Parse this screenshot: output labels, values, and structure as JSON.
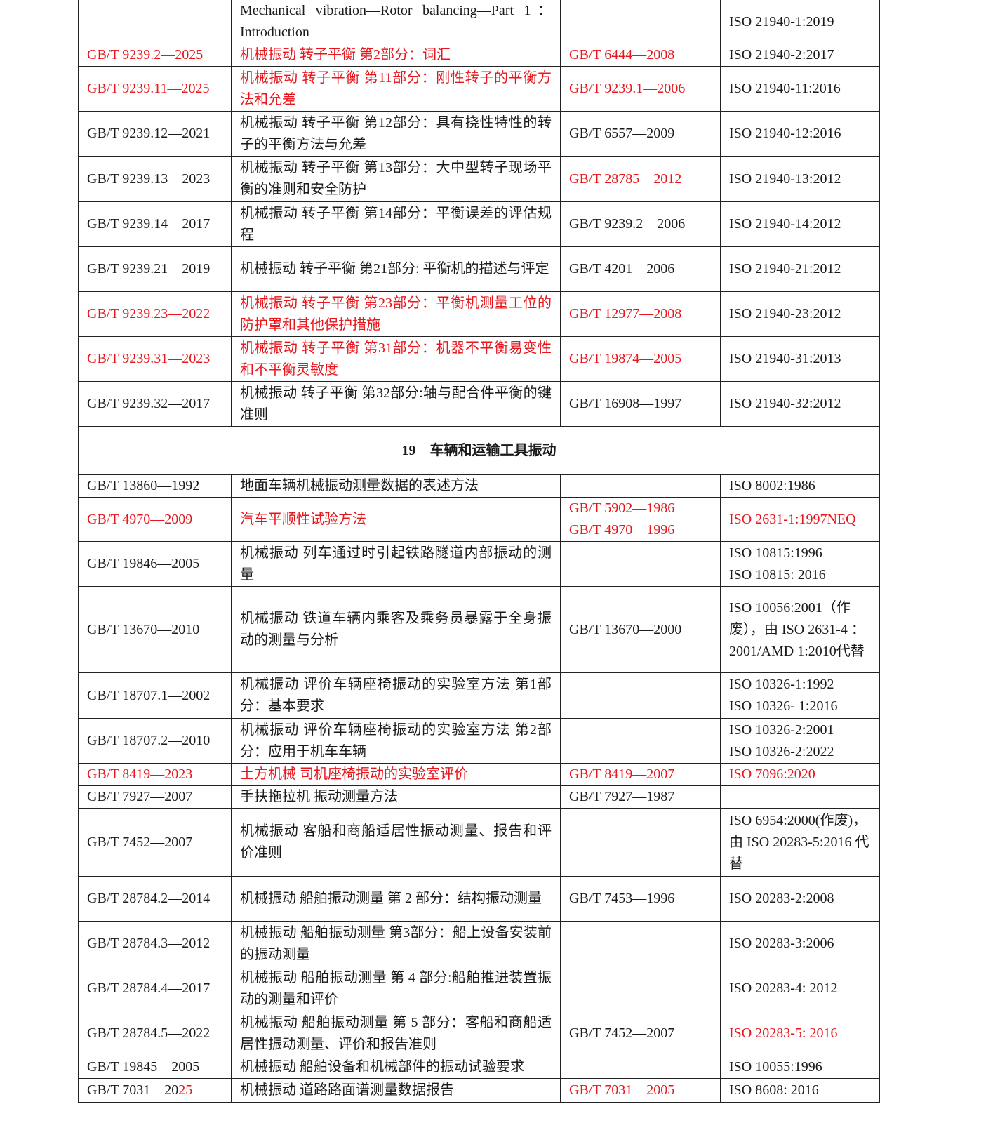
{
  "section": {
    "number": "19",
    "title": "车辆和运输工具振动"
  },
  "rows_before": [
    {
      "code": [
        {
          "t": ""
        }
      ],
      "title": [
        {
          "t": "Mechanical vibration—Rotor balancing—Part 1：Introduction"
        }
      ],
      "replaces": [],
      "iso": [
        {
          "t": "ISO 21940-1:2019"
        }
      ]
    },
    {
      "code": [
        {
          "t": "GB/T 9239.2—2025",
          "red": true
        }
      ],
      "title": [
        {
          "t": "机械振动  转子平衡  第2部分：词汇",
          "red": true
        }
      ],
      "replaces": [
        {
          "t": "GB/T 6444—2008",
          "red": true
        }
      ],
      "iso": [
        {
          "t": "ISO 21940-2:2017"
        }
      ]
    },
    {
      "code": [
        {
          "t": "GB/T 9239.11—2025",
          "red": true
        }
      ],
      "title": [
        {
          "t": "机械振动  转子平衡  第11部分：刚性转子的平衡方法和允差",
          "red": true
        }
      ],
      "replaces": [
        {
          "t": "GB/T 9239.1—2006",
          "red": true
        }
      ],
      "iso": [
        {
          "t": "ISO 21940-11:2016"
        }
      ]
    },
    {
      "code": [
        {
          "t": "GB/T 9239.12—2021"
        }
      ],
      "title": [
        {
          "t": "机械振动  转子平衡  第12部分：具有挠性特性的转子的平衡方法与允差"
        }
      ],
      "replaces": [
        {
          "t": "GB/T 6557—2009"
        }
      ],
      "iso": [
        {
          "t": "ISO 21940-12:2016"
        }
      ]
    },
    {
      "code": [
        {
          "t": "GB/T 9239.13—2023"
        }
      ],
      "title": [
        {
          "t": "机械振动  转子平衡  第13部分：大中型转子现场平衡的准则和安全防护"
        }
      ],
      "replaces": [
        {
          "t": "GB/T 28785—2012",
          "red": true
        }
      ],
      "iso": [
        {
          "t": "ISO 21940-13:2012"
        }
      ]
    },
    {
      "code": [
        {
          "t": "GB/T 9239.14—2017"
        }
      ],
      "title": [
        {
          "t": "机械振动  转子平衡  第14部分：平衡误差的评估规程"
        }
      ],
      "replaces": [
        {
          "t": "GB/T 9239.2—2006"
        }
      ],
      "iso": [
        {
          "t": "ISO 21940-14:2012"
        }
      ]
    },
    {
      "code": [
        {
          "t": "GB/T 9239.21—2019"
        }
      ],
      "title": [
        {
          "t": "机械振动  转子平衡  第21部分: 平衡机的描述与评定"
        }
      ],
      "replaces": [
        {
          "t": "GB/T 4201—2006"
        }
      ],
      "iso": [
        {
          "t": "ISO 21940-21:2012"
        }
      ]
    },
    {
      "code": [
        {
          "t": "GB/T 9239.23—2022",
          "red": true
        }
      ],
      "title": [
        {
          "t": "机械振动  转子平衡  第23部分：平衡机测量工位的防护罩和其他保护措施",
          "red": true
        }
      ],
      "replaces": [
        {
          "t": "GB/T 12977—2008",
          "red": true
        }
      ],
      "iso": [
        {
          "t": "ISO 21940-23:2012"
        }
      ]
    },
    {
      "code": [
        {
          "t": "GB/T 9239.31—2023",
          "red": true
        }
      ],
      "title": [
        {
          "t": "机械振动  转子平衡  第31部分：机器不平衡易变性和不平衡灵敏度",
          "red": true
        }
      ],
      "replaces": [
        {
          "t": "GB/T 19874—2005",
          "red": true
        }
      ],
      "iso": [
        {
          "t": "ISO 21940-31:2013"
        }
      ]
    },
    {
      "code": [
        {
          "t": "GB/T 9239.32—2017"
        }
      ],
      "title": [
        {
          "t": "机械振动  转子平衡  第32部分:轴与配合件平衡的键准则"
        }
      ],
      "replaces": [
        {
          "t": " GB/T 16908—1997"
        }
      ],
      "iso": [
        {
          "t": "ISO 21940-32:2012"
        }
      ]
    }
  ],
  "rows_after": [
    {
      "code": [
        {
          "t": "GB/T 13860—1992"
        }
      ],
      "title": [
        {
          "t": "地面车辆机械振动测量数据的表述方法"
        }
      ],
      "replaces": [],
      "iso": [
        {
          "t": "ISO 8002:1986"
        }
      ]
    },
    {
      "code": [
        {
          "t": "GB/T 4970—2009",
          "red": true
        }
      ],
      "title": [
        {
          "t": "汽车平顺性试验方法",
          "red": true
        }
      ],
      "replaces": [
        {
          "t": "GB/T 5902—1986",
          "red": true,
          "br": true
        },
        {
          "t": "GB/T 4970—1996",
          "red": true
        }
      ],
      "iso": [
        {
          "t": "ISO 2631-1:1997NEQ",
          "red": true
        }
      ]
    },
    {
      "code": [
        {
          "t": "GB/T 19846—2005"
        }
      ],
      "title": [
        {
          "t": "机械振动  列车通过时引起铁路隧道内部振动的测量"
        }
      ],
      "replaces": [],
      "iso": [
        {
          "t": "ISO 10815:1996",
          "br": true
        },
        {
          "t": "ISO 10815: 2016"
        }
      ]
    },
    {
      "code": [
        {
          "t": "GB/T 13670—2010"
        }
      ],
      "title": [
        {
          "t": "机械振动  铁道车辆内乘客及乘务员暴露于全身振动的测量与分析"
        }
      ],
      "replaces": [
        {
          "t": "GB/T 13670—2000"
        }
      ],
      "iso": [
        {
          "t": "ISO 10056:2001（作废），由 ISO 2631-4 ： 2001/AMD 1:2010代替"
        }
      ]
    },
    {
      "code": [
        {
          "t": "GB/T 18707.1—2002"
        }
      ],
      "title": [
        {
          "t": "机械振动  评价车辆座椅振动的实验室方法  第1部分：基本要求"
        }
      ],
      "replaces": [],
      "iso": [
        {
          "t": "ISO 10326-1:1992",
          "br": true
        },
        {
          "t": "ISO 10326- 1:2016"
        }
      ]
    },
    {
      "code": [
        {
          "t": "GB/T 18707.2—2010"
        }
      ],
      "title": [
        {
          "t": "机械振动  评价车辆座椅振动的实验室方法  第2部分：应用于机车车辆"
        }
      ],
      "replaces": [],
      "iso": [
        {
          "t": "ISO 10326-2:2001",
          "br": true
        },
        {
          "t": "ISO 10326-2:2022"
        }
      ]
    },
    {
      "code": [
        {
          "t": "GB/T 8419—2023",
          "red": true
        }
      ],
      "title": [
        {
          "t": "土方机械  司机座椅振动的实验室评价",
          "red": true
        }
      ],
      "replaces": [
        {
          "t": "GB/T 8419—2007",
          "red": true
        }
      ],
      "iso": [
        {
          "t": "ISO 7096:2020",
          "red": true
        }
      ]
    },
    {
      "code": [
        {
          "t": "GB/T 7927—2007"
        }
      ],
      "title": [
        {
          "t": "手扶拖拉机    振动测量方法"
        }
      ],
      "replaces": [
        {
          "t": "GB/T 7927—1987"
        }
      ],
      "iso": []
    },
    {
      "code": [
        {
          "t": "GB/T 7452—2007"
        }
      ],
      "title": [
        {
          "t": "机械振动  客船和商船适居性振动测量、报告和评价准则"
        }
      ],
      "replaces": [],
      "iso": [
        {
          "t": "ISO 6954:2000(作废)，由 ISO 20283-5:2016 代替"
        }
      ]
    },
    {
      "code": [
        {
          "t": "GB/T 28784.2—2014"
        }
      ],
      "title": [
        {
          "t": "机械振动  船舶振动测量  第 2 部分：结构振动测量"
        }
      ],
      "replaces": [
        {
          "t": "GB/T 7453—1996"
        }
      ],
      "iso": [
        {
          "t": "ISO 20283-2:2008"
        }
      ]
    },
    {
      "code": [
        {
          "t": "GB/T 28784.3—2012"
        }
      ],
      "title": [
        {
          "t": "机械振动  船舶振动测量  第3部分：船上设备安装前的振动测量"
        }
      ],
      "replaces": [],
      "iso": [
        {
          "t": "ISO 20283-3:2006"
        }
      ]
    },
    {
      "code": [
        {
          "t": "GB/T 28784.4—2017"
        }
      ],
      "title": [
        {
          "t": "机械振动  船舶振动测量  第 4 部分:船舶推进装置振动的测量和评价"
        }
      ],
      "replaces": [],
      "iso": [
        {
          "t": "ISO 20283-4: 2012"
        }
      ]
    },
    {
      "code": [
        {
          "t": "GB/T 28784.5—2022"
        }
      ],
      "title": [
        {
          "t": "机械振动  船舶振动测量  第 5 部分：客船和商船适居性振动测量、评价和报告准则"
        }
      ],
      "replaces": [
        {
          "t": "GB/T 7452—2007"
        }
      ],
      "iso": [
        {
          "t": "ISO 20283-5: 2016",
          "red": true
        }
      ]
    },
    {
      "code": [
        {
          "t": "GB/T 19845—2005"
        }
      ],
      "title": [
        {
          "t": "机械振动  船舶设备和机械部件的振动试验要求"
        }
      ],
      "replaces": [],
      "iso": [
        {
          "t": "ISO 10055:1996"
        }
      ]
    },
    {
      "code": [
        {
          "t": "GB/T 7031—20"
        },
        {
          "t": "25",
          "red": true
        }
      ],
      "title": [
        {
          "t": "机械振动  道路路面谱测量数据报告"
        }
      ],
      "replaces": [
        {
          "t": "GB/T 7031—2005",
          "red": true
        }
      ],
      "iso": [
        {
          "t": "ISO 8608: 2016"
        }
      ]
    }
  ]
}
